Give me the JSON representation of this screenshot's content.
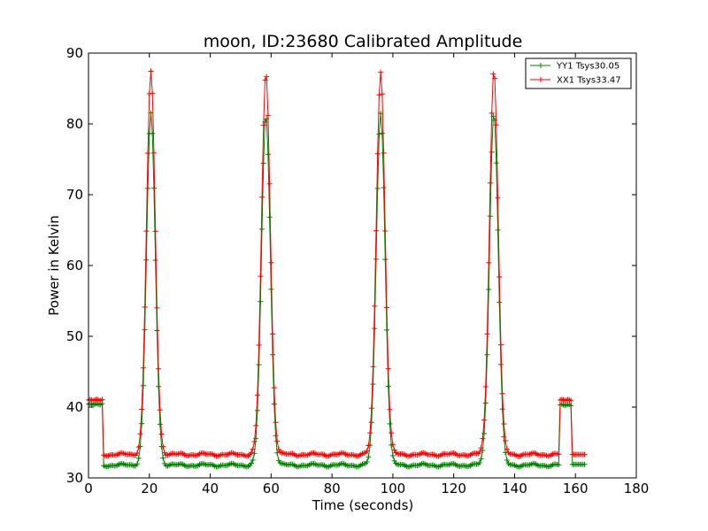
{
  "chart_data": {
    "type": "line",
    "title": "moon, ID:23680 Calibrated Amplitude",
    "xlabel": "Time (seconds)",
    "ylabel": "Power in Kelvin",
    "xlim": [
      0,
      180
    ],
    "ylim": [
      30,
      90
    ],
    "xticks": [
      0,
      20,
      40,
      60,
      80,
      100,
      120,
      140,
      160,
      180
    ],
    "yticks": [
      30,
      40,
      50,
      60,
      70,
      80,
      90
    ],
    "grid": false,
    "legend_position": "top-right",
    "markers": "plus",
    "peak_times": [
      20.5,
      58.3,
      96.0,
      133.2
    ],
    "series": [
      {
        "name": "YY1 Tsys30.05",
        "color": "#008000",
        "baseline": 31.8,
        "peak_values": [
          81.3,
          81.3,
          81.6,
          81.6
        ],
        "start_segment": {
          "x0": 0,
          "x1": 4.5,
          "value": 40.4
        },
        "end_segment_1": {
          "x0": 155,
          "x1": 158.5,
          "value": 40.3
        },
        "end_segment_2": {
          "x0": 158.5,
          "x1": 163,
          "value": 31.9
        }
      },
      {
        "name": "XX1 Tsys33.47",
        "color": "#ff0000",
        "baseline": 33.3,
        "peak_values": [
          87.2,
          87.3,
          87.4,
          87.6
        ],
        "start_segment": {
          "x0": 0,
          "x1": 4.5,
          "value": 41.0
        },
        "end_segment_1": {
          "x0": 155,
          "x1": 158.5,
          "value": 41.0
        },
        "end_segment_2": {
          "x0": 158.5,
          "x1": 163,
          "value": 33.3
        }
      }
    ]
  }
}
